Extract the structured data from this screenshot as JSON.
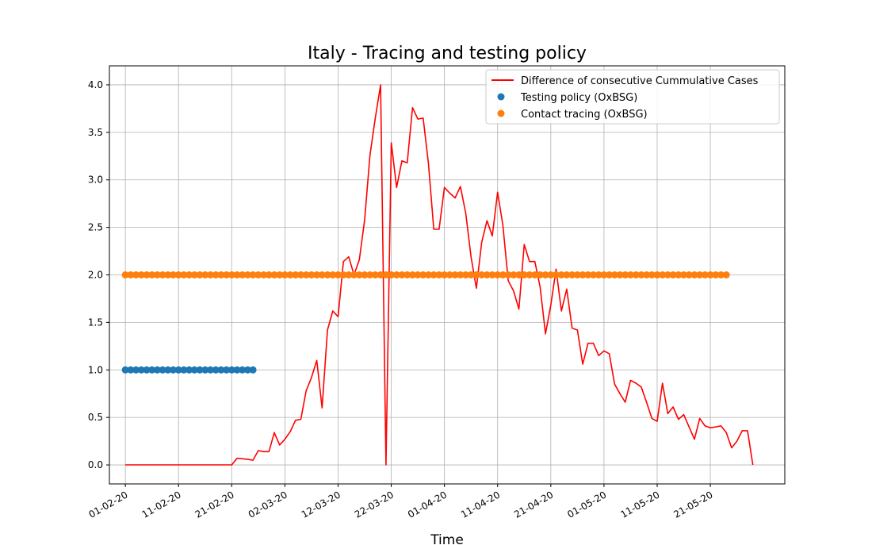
{
  "chart_data": {
    "type": "line",
    "title": "Italy - Tracing and testing policy",
    "xlabel": "Time",
    "ylabel": "",
    "ylim": [
      -0.2,
      4.2
    ],
    "xlim": [
      "2020-01-29",
      "2020-06-04"
    ],
    "grid": true,
    "legend_position": "top-right",
    "x_tick_labels": [
      "01-02-20",
      "11-02-20",
      "21-02-20",
      "02-03-20",
      "12-03-20",
      "22-03-20",
      "01-04-20",
      "11-04-20",
      "21-04-20",
      "01-05-20",
      "11-05-20",
      "21-05-20"
    ],
    "x_tick_dates": [
      "2020-02-01",
      "2020-02-11",
      "2020-02-21",
      "2020-03-02",
      "2020-03-12",
      "2020-03-22",
      "2020-04-01",
      "2020-04-11",
      "2020-04-21",
      "2020-05-01",
      "2020-05-11",
      "2020-05-21"
    ],
    "y_tick_labels": [
      "0.0",
      "0.5",
      "1.0",
      "1.5",
      "2.0",
      "2.5",
      "3.0",
      "3.5",
      "4.0"
    ],
    "y_tick_values": [
      0,
      0.5,
      1,
      1.5,
      2,
      2.5,
      3,
      3.5,
      4
    ],
    "series": [
      {
        "name": "Difference of consecutive Cummulative Cases",
        "kind": "line",
        "color": "#ff0000",
        "x": [
          "2020-02-01",
          "2020-02-06",
          "2020-02-21",
          "2020-02-22",
          "2020-02-23",
          "2020-02-24",
          "2020-02-25",
          "2020-02-26",
          "2020-02-27",
          "2020-02-28",
          "2020-02-29",
          "2020-03-01",
          "2020-03-02",
          "2020-03-03",
          "2020-03-04",
          "2020-03-05",
          "2020-03-06",
          "2020-03-07",
          "2020-03-08",
          "2020-03-09",
          "2020-03-10",
          "2020-03-11",
          "2020-03-12",
          "2020-03-13",
          "2020-03-14",
          "2020-03-15",
          "2020-03-16",
          "2020-03-17",
          "2020-03-18",
          "2020-03-19",
          "2020-03-20",
          "2020-03-21",
          "2020-03-22",
          "2020-03-23",
          "2020-03-24",
          "2020-03-25",
          "2020-03-26",
          "2020-03-27",
          "2020-03-28",
          "2020-03-29",
          "2020-03-30",
          "2020-03-31",
          "2020-04-01",
          "2020-04-02",
          "2020-04-03",
          "2020-04-04",
          "2020-04-05",
          "2020-04-06",
          "2020-04-07",
          "2020-04-08",
          "2020-04-09",
          "2020-04-10",
          "2020-04-11",
          "2020-04-12",
          "2020-04-13",
          "2020-04-14",
          "2020-04-15",
          "2020-04-16",
          "2020-04-17",
          "2020-04-18",
          "2020-04-19",
          "2020-04-20",
          "2020-04-21",
          "2020-04-22",
          "2020-04-23",
          "2020-04-24",
          "2020-04-25",
          "2020-04-26",
          "2020-04-27",
          "2020-04-28",
          "2020-04-29",
          "2020-04-30",
          "2020-05-01",
          "2020-05-02",
          "2020-05-03",
          "2020-05-04",
          "2020-05-05",
          "2020-05-06",
          "2020-05-07",
          "2020-05-08",
          "2020-05-09",
          "2020-05-10",
          "2020-05-11",
          "2020-05-12",
          "2020-05-13",
          "2020-05-14",
          "2020-05-15",
          "2020-05-16",
          "2020-05-17",
          "2020-05-18",
          "2020-05-19",
          "2020-05-20",
          "2020-05-21",
          "2020-05-22",
          "2020-05-23",
          "2020-05-24",
          "2020-05-25",
          "2020-05-26",
          "2020-05-27",
          "2020-05-28"
        ],
        "y": [
          0,
          0,
          0,
          0.07,
          0.065,
          0.06,
          0.05,
          0.15,
          0.14,
          0.14,
          0.34,
          0.21,
          0.27,
          0.35,
          0.47,
          0.48,
          0.78,
          0.92,
          1.1,
          0.6,
          1.42,
          1.62,
          1.56,
          2.14,
          2.19,
          2.0,
          2.16,
          2.58,
          3.26,
          3.65,
          4.0,
          0.0,
          3.39,
          2.92,
          3.2,
          3.18,
          3.76,
          3.64,
          3.65,
          3.17,
          2.48,
          2.48,
          2.92,
          2.86,
          2.81,
          2.93,
          2.65,
          2.19,
          1.86,
          2.34,
          2.57,
          2.41,
          2.87,
          2.52,
          1.94,
          1.83,
          1.64,
          2.32,
          2.14,
          2.14,
          1.87,
          1.38,
          1.68,
          2.06,
          1.62,
          1.85,
          1.44,
          1.42,
          1.06,
          1.28,
          1.28,
          1.15,
          1.2,
          1.17,
          0.85,
          0.75,
          0.66,
          0.89,
          0.86,
          0.82,
          0.66,
          0.49,
          0.46,
          0.86,
          0.54,
          0.61,
          0.48,
          0.53,
          0.4,
          0.27,
          0.49,
          0.41,
          0.39,
          0.4,
          0.41,
          0.34,
          0.18,
          0.25,
          0.36,
          0.36
        ]
      },
      {
        "name": "Testing policy (OxBSG)",
        "kind": "scatter",
        "color": "#1f77b4",
        "value": 1,
        "x_start": "2020-02-01",
        "x_end": "2020-02-25"
      },
      {
        "name": "Contact tracing (OxBSG)",
        "kind": "scatter",
        "color": "#ff7f0e",
        "value": 2,
        "x_start": "2020-02-01",
        "x_end": "2020-05-24"
      }
    ],
    "final_point": {
      "x": "2020-05-29",
      "y": 0.0
    }
  }
}
